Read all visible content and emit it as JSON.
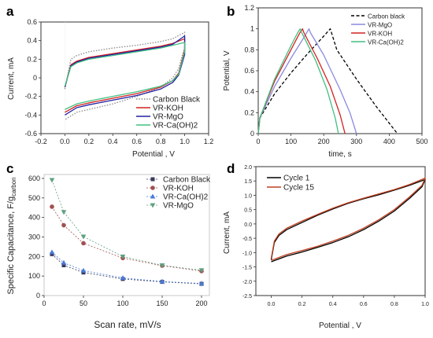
{
  "colors": {
    "carbon_black": "#8a8a8a",
    "carbon_black_b": "#000000",
    "koh": "#d42020",
    "mgo": "#2020a0",
    "mgo_light": "#8a8ae0",
    "caoh2": "#40c080",
    "c_carbon": "#3a3a5a",
    "c_koh": "#a05050",
    "c_caoh2": "#4a7ad8",
    "c_mgo": "#60a080",
    "cycle1": "#000000",
    "cycle15": "#c04020"
  },
  "chart_data": [
    {
      "panel": "a",
      "type": "line",
      "xlabel": "Potential , V",
      "ylabel": "Current, mA",
      "xlim": [
        -0.2,
        1.2
      ],
      "ylim": [
        -0.6,
        0.6
      ],
      "xticks": [
        "-0.2",
        "0.0",
        "0.2",
        "0.4",
        "0.6",
        "0.8",
        "1.0",
        "1.2"
      ],
      "yticks": [
        "-0.6",
        "-0.4",
        "-0.2",
        "0",
        "0.2",
        "0.4",
        "0.6"
      ],
      "legend_position": "bottom-right",
      "series": [
        {
          "name": "Carbon Black",
          "style": "dotted",
          "color_key": "carbon_black",
          "upper": [
            [
              0.0,
              -0.12
            ],
            [
              0.05,
              0.2
            ],
            [
              0.1,
              0.24
            ],
            [
              0.2,
              0.28
            ],
            [
              0.4,
              0.32
            ],
            [
              0.6,
              0.35
            ],
            [
              0.8,
              0.39
            ],
            [
              0.9,
              0.42
            ],
            [
              1.0,
              0.49
            ]
          ],
          "lower": [
            [
              1.0,
              0.49
            ],
            [
              1.0,
              0.33
            ],
            [
              0.95,
              0.1
            ],
            [
              0.9,
              0.0
            ],
            [
              0.8,
              -0.1
            ],
            [
              0.6,
              -0.2
            ],
            [
              0.4,
              -0.28
            ],
            [
              0.2,
              -0.34
            ],
            [
              0.1,
              -0.37
            ],
            [
              0.0,
              -0.45
            ]
          ]
        },
        {
          "name": "VR-KOH",
          "color_key": "koh",
          "upper": [
            [
              0.0,
              -0.1
            ],
            [
              0.05,
              0.14
            ],
            [
              0.1,
              0.18
            ],
            [
              0.2,
              0.22
            ],
            [
              0.4,
              0.26
            ],
            [
              0.6,
              0.3
            ],
            [
              0.8,
              0.34
            ],
            [
              0.9,
              0.37
            ],
            [
              1.0,
              0.42
            ]
          ],
          "lower": [
            [
              1.0,
              0.42
            ],
            [
              1.0,
              0.3
            ],
            [
              0.95,
              0.05
            ],
            [
              0.9,
              -0.03
            ],
            [
              0.8,
              -0.1
            ],
            [
              0.6,
              -0.17
            ],
            [
              0.4,
              -0.22
            ],
            [
              0.2,
              -0.27
            ],
            [
              0.1,
              -0.3
            ],
            [
              0.0,
              -0.37
            ]
          ]
        },
        {
          "name": "VR-MgO",
          "color_key": "mgo",
          "upper": [
            [
              0.0,
              -0.1
            ],
            [
              0.05,
              0.13
            ],
            [
              0.1,
              0.17
            ],
            [
              0.2,
              0.21
            ],
            [
              0.4,
              0.25
            ],
            [
              0.6,
              0.29
            ],
            [
              0.8,
              0.33
            ],
            [
              0.9,
              0.36
            ],
            [
              1.0,
              0.45
            ]
          ],
          "lower": [
            [
              1.0,
              0.45
            ],
            [
              1.0,
              0.25
            ],
            [
              0.95,
              0.03
            ],
            [
              0.9,
              -0.05
            ],
            [
              0.8,
              -0.12
            ],
            [
              0.6,
              -0.19
            ],
            [
              0.4,
              -0.24
            ],
            [
              0.2,
              -0.29
            ],
            [
              0.1,
              -0.32
            ],
            [
              0.0,
              -0.4
            ]
          ]
        },
        {
          "name": "VR-Ca(OH)2",
          "color_key": "caoh2",
          "upper": [
            [
              0.0,
              -0.09
            ],
            [
              0.05,
              0.12
            ],
            [
              0.1,
              0.16
            ],
            [
              0.2,
              0.2
            ],
            [
              0.4,
              0.24
            ],
            [
              0.6,
              0.28
            ],
            [
              0.8,
              0.32
            ],
            [
              0.9,
              0.35
            ],
            [
              1.0,
              0.38
            ]
          ],
          "lower": [
            [
              1.0,
              0.38
            ],
            [
              1.0,
              0.28
            ],
            [
              0.95,
              0.04
            ],
            [
              0.9,
              -0.03
            ],
            [
              0.8,
              -0.09
            ],
            [
              0.6,
              -0.15
            ],
            [
              0.4,
              -0.2
            ],
            [
              0.2,
              -0.25
            ],
            [
              0.1,
              -0.28
            ],
            [
              0.0,
              -0.34
            ]
          ]
        }
      ]
    },
    {
      "panel": "b",
      "type": "line",
      "xlabel": "time, s",
      "ylabel": "Potential, V",
      "xlim": [
        0,
        500
      ],
      "ylim": [
        0,
        1.2
      ],
      "xticks": [
        "0",
        "100",
        "200",
        "300",
        "400",
        "500"
      ],
      "yticks": [
        "0",
        "0.2",
        "0.4",
        "0.6",
        "0.8",
        "1",
        "1.2"
      ],
      "legend_position": "top-right",
      "series": [
        {
          "name": "Carbon black",
          "style": "dashed",
          "color_key": "carbon_black_b",
          "x": [
            0,
            5,
            50,
            100,
            150,
            200,
            220,
            225,
            240,
            300,
            360,
            400,
            425
          ],
          "y": [
            0,
            0.15,
            0.38,
            0.58,
            0.76,
            0.93,
            1.0,
            0.95,
            0.8,
            0.52,
            0.26,
            0.1,
            0
          ]
        },
        {
          "name": "VR-MgO",
          "color_key": "mgo_light",
          "x": [
            0,
            5,
            50,
            100,
            140,
            155,
            160,
            200,
            250,
            280,
            300
          ],
          "y": [
            0,
            0.15,
            0.45,
            0.72,
            0.92,
            1.0,
            0.96,
            0.75,
            0.42,
            0.2,
            0
          ]
        },
        {
          "name": "VR-KOH",
          "color_key": "koh",
          "x": [
            0,
            5,
            50,
            100,
            125,
            135,
            140,
            180,
            220,
            250,
            265
          ],
          "y": [
            0,
            0.15,
            0.5,
            0.8,
            0.95,
            1.0,
            0.96,
            0.72,
            0.45,
            0.18,
            0
          ]
        },
        {
          "name": "VR-Ca(OH)2",
          "color_key": "caoh2",
          "x": [
            0,
            5,
            50,
            100,
            120,
            128,
            135,
            175,
            210,
            235,
            245
          ],
          "y": [
            0,
            0.15,
            0.52,
            0.84,
            0.96,
            1.0,
            0.95,
            0.7,
            0.42,
            0.15,
            0
          ]
        }
      ]
    },
    {
      "panel": "c",
      "type": "scatter",
      "xlabel": "Scan rate, mV/s",
      "ylabel_main": "Specific Capacitance, F/g",
      "ylabel_sub": "carbon",
      "xlim": [
        0,
        210
      ],
      "ylim": [
        0,
        620
      ],
      "xticks": [
        "0",
        "50",
        "100",
        "150",
        "200"
      ],
      "yticks": [
        "0",
        "100",
        "200",
        "300",
        "400",
        "500",
        "600"
      ],
      "legend_position": "top-right",
      "x": [
        10,
        25,
        50,
        100,
        150,
        200
      ],
      "series": [
        {
          "name": "Carbon Black",
          "marker": "square",
          "color_key": "c_carbon",
          "values": [
            212,
            155,
            118,
            85,
            70,
            60
          ]
        },
        {
          "name": "VR-KOH",
          "marker": "circle",
          "color_key": "c_koh",
          "values": [
            455,
            360,
            268,
            192,
            153,
            125
          ]
        },
        {
          "name": "VR-Ca(OH)2",
          "marker": "triangle-up",
          "color_key": "c_caoh2",
          "values": [
            222,
            168,
            128,
            90,
            72,
            62
          ]
        },
        {
          "name": "VR-MgO",
          "marker": "triangle-down",
          "color_key": "c_mgo",
          "values": [
            592,
            428,
            302,
            200,
            155,
            130
          ]
        }
      ]
    },
    {
      "panel": "d",
      "type": "line",
      "xlabel": "Potential , V",
      "ylabel": "Current, mA",
      "xlim": [
        -0.1,
        1.0
      ],
      "ylim": [
        -2.5,
        2.0
      ],
      "xticks": [
        "0.0",
        "0.2",
        "0.4",
        "0.6",
        "0.8",
        "1.0"
      ],
      "yticks": [
        "-2.5",
        "-2.0",
        "-1.5",
        "-1.0",
        "-0.5",
        "0.0",
        "0.5",
        "1.0",
        "1.5",
        "2.0"
      ],
      "legend_position": "top-left",
      "series": [
        {
          "name": "Cycle 1",
          "color_key": "cycle1",
          "upper": [
            [
              0.0,
              -1.25
            ],
            [
              0.02,
              -0.65
            ],
            [
              0.05,
              -0.4
            ],
            [
              0.1,
              -0.2
            ],
            [
              0.2,
              0.05
            ],
            [
              0.3,
              0.3
            ],
            [
              0.4,
              0.52
            ],
            [
              0.5,
              0.72
            ],
            [
              0.6,
              0.88
            ],
            [
              0.7,
              1.02
            ],
            [
              0.8,
              1.18
            ],
            [
              0.9,
              1.35
            ],
            [
              1.0,
              1.55
            ]
          ],
          "lower": [
            [
              1.0,
              1.55
            ],
            [
              0.98,
              1.3
            ],
            [
              0.9,
              0.9
            ],
            [
              0.8,
              0.45
            ],
            [
              0.7,
              0.1
            ],
            [
              0.6,
              -0.2
            ],
            [
              0.5,
              -0.45
            ],
            [
              0.4,
              -0.65
            ],
            [
              0.3,
              -0.82
            ],
            [
              0.2,
              -0.98
            ],
            [
              0.1,
              -1.12
            ],
            [
              0.0,
              -1.32
            ]
          ]
        },
        {
          "name": "Cycle 15",
          "color_key": "cycle15",
          "upper": [
            [
              0.0,
              -1.2
            ],
            [
              0.02,
              -0.6
            ],
            [
              0.05,
              -0.35
            ],
            [
              0.1,
              -0.15
            ],
            [
              0.2,
              0.1
            ],
            [
              0.3,
              0.33
            ],
            [
              0.4,
              0.55
            ],
            [
              0.5,
              0.74
            ],
            [
              0.6,
              0.9
            ],
            [
              0.7,
              1.05
            ],
            [
              0.8,
              1.2
            ],
            [
              0.9,
              1.38
            ],
            [
              1.0,
              1.6
            ]
          ],
          "lower": [
            [
              1.0,
              1.6
            ],
            [
              0.98,
              1.35
            ],
            [
              0.9,
              0.95
            ],
            [
              0.8,
              0.5
            ],
            [
              0.7,
              0.15
            ],
            [
              0.6,
              -0.15
            ],
            [
              0.5,
              -0.4
            ],
            [
              0.4,
              -0.6
            ],
            [
              0.3,
              -0.78
            ],
            [
              0.2,
              -0.93
            ],
            [
              0.1,
              -1.07
            ],
            [
              0.0,
              -1.27
            ]
          ]
        }
      ]
    }
  ]
}
